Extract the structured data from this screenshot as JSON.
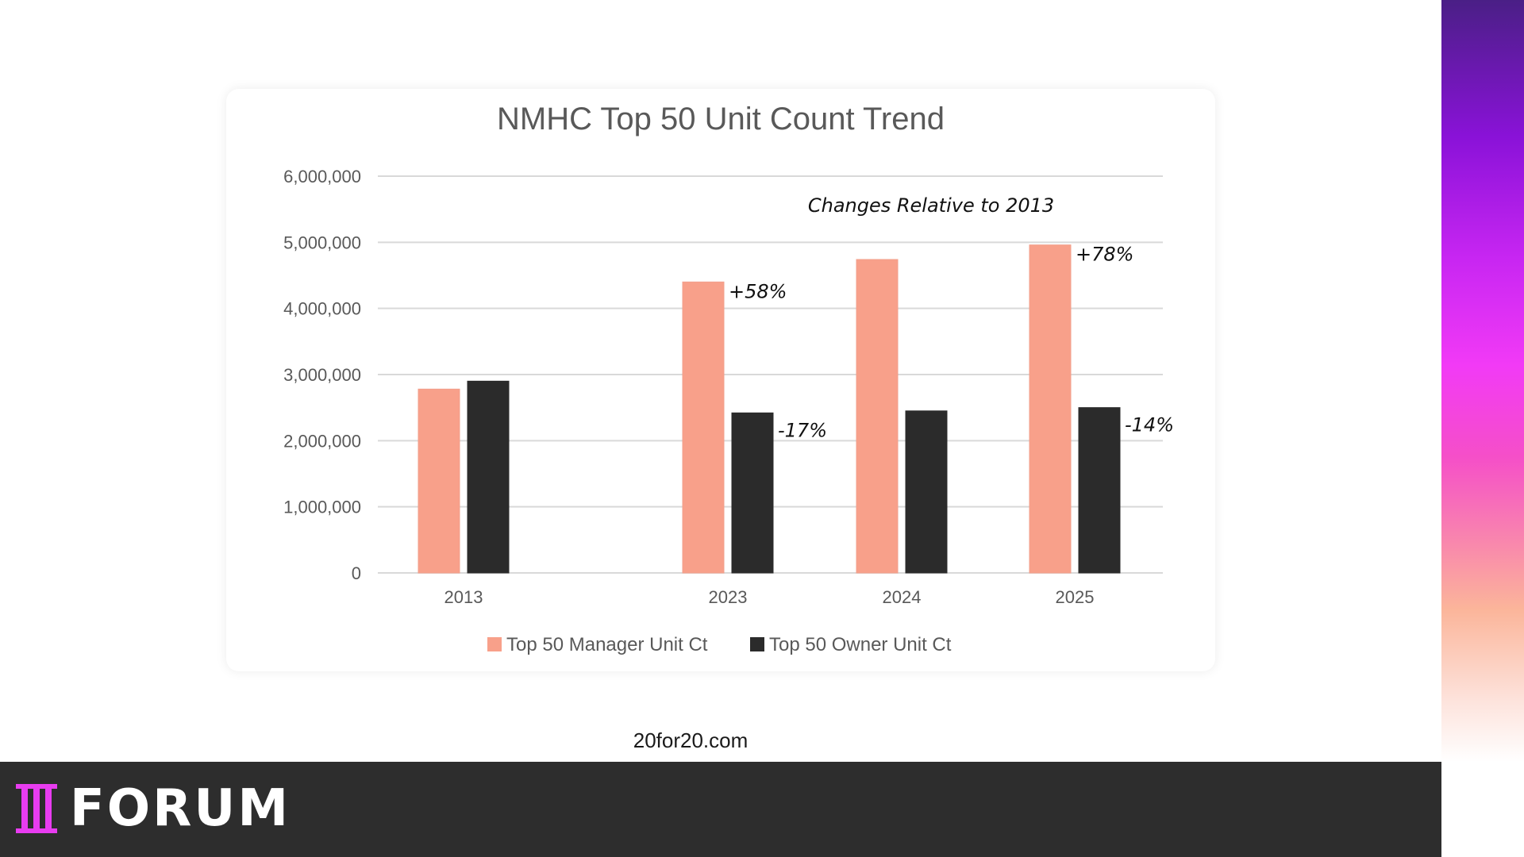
{
  "footer": {
    "url": "20for20.com"
  },
  "brand": {
    "name": "FORUM",
    "mark": "logo-mark-icon"
  },
  "colors": {
    "manager": "#f8a08a",
    "owner": "#2b2b2b",
    "grid": "#d9d9d9",
    "text": "#595959",
    "brand_magenta": "#e83cf0"
  },
  "chart_data": {
    "type": "bar",
    "title": "NMHC Top 50 Unit Count Trend",
    "annotation_title": "Changes Relative to 2013",
    "categories": [
      "2013",
      "2023",
      "2024",
      "2025"
    ],
    "series": [
      {
        "name": "Top 50 Manager Unit Ct",
        "values": [
          2780000,
          4400000,
          4740000,
          4960000
        ]
      },
      {
        "name": "Top 50 Owner Unit Ct",
        "values": [
          2900000,
          2420000,
          2450000,
          2500000
        ]
      }
    ],
    "ylim": [
      0,
      6000000
    ],
    "yticks": [
      "0",
      "1,000,000",
      "2,000,000",
      "3,000,000",
      "4,000,000",
      "5,000,000",
      "6,000,000"
    ],
    "annotations": [
      {
        "category": "2023",
        "series": 0,
        "text": "+58%"
      },
      {
        "category": "2023",
        "series": 1,
        "text": "-17%"
      },
      {
        "category": "2025",
        "series": 0,
        "text": "+78%"
      },
      {
        "category": "2025",
        "series": 1,
        "text": "-14%"
      }
    ],
    "legend": "bottom",
    "grid": true
  }
}
